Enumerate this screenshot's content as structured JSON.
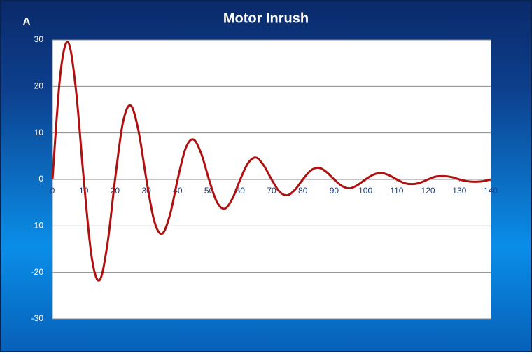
{
  "chart_data": {
    "type": "line",
    "title": "Motor Inrush",
    "y_label": "A",
    "x": [
      0,
      2.5,
      5,
      7.5,
      10,
      12.5,
      15,
      17.5,
      20,
      22.5,
      25,
      27.5,
      30,
      32.5,
      35,
      37.5,
      40,
      42.5,
      45,
      47.5,
      50,
      52.5,
      55,
      57.5,
      60,
      62.5,
      65,
      67.5,
      70,
      72.5,
      75,
      77.5,
      80,
      82.5,
      85,
      87.5,
      90,
      92.5,
      95,
      97.5,
      100,
      102.5,
      105,
      107.5,
      110,
      112.5,
      115,
      117.5,
      120,
      122.5,
      125,
      127.5,
      130,
      132.5,
      135,
      137.5,
      140
    ],
    "series": [
      {
        "color": "#b01010",
        "values": [
          0,
          22.5,
          29.5,
          19.3,
          0,
          -16.6,
          -21.7,
          -14.2,
          0,
          12.2,
          15.9,
          10.4,
          0,
          -8.9,
          -11.7,
          -7.7,
          0,
          6.6,
          8.6,
          5.6,
          0,
          -4.8,
          -6.3,
          -4.1,
          0,
          3.5,
          4.7,
          3.0,
          0,
          -2.6,
          -3.4,
          -2.2,
          0,
          1.9,
          2.5,
          1.6,
          0,
          -1.4,
          -1.9,
          -1.2,
          0,
          1.0,
          1.4,
          0.9,
          0,
          -0.8,
          -1.0,
          -0.7,
          0,
          0.6,
          0.7,
          0.5,
          0,
          -0.4,
          -0.5,
          -0.4,
          0
        ]
      }
    ],
    "xlim": [
      0,
      140
    ],
    "xticks": [
      0,
      10,
      20,
      30,
      40,
      50,
      60,
      70,
      80,
      90,
      100,
      110,
      120,
      130,
      140
    ],
    "ylim": [
      -30,
      30
    ],
    "yticks": [
      -30,
      -20,
      -10,
      0,
      10,
      20,
      30
    ],
    "grid": true
  }
}
